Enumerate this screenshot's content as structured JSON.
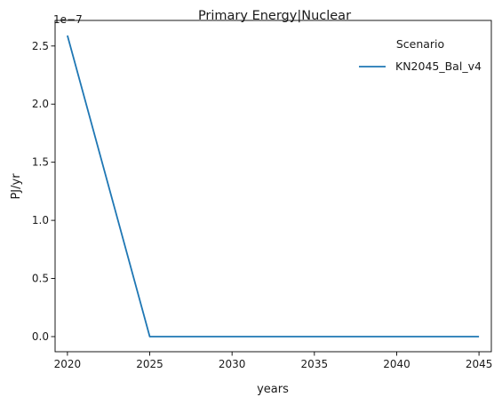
{
  "chart_data": {
    "type": "line",
    "title": "Primary Energy|Nuclear",
    "xlabel": "years",
    "ylabel": "PJ/yr",
    "y_offset_label": "1e−7",
    "x_ticks": [
      2020,
      2025,
      2030,
      2035,
      2040,
      2045
    ],
    "y_ticks": [
      "0.0",
      "0.5",
      "1.0",
      "1.5",
      "2.0",
      "2.5"
    ],
    "y_tick_values": [
      0.0,
      0.5,
      1.0,
      1.5,
      2.0,
      2.5
    ],
    "xlim": [
      2019.25,
      2045.75
    ],
    "ylim": [
      -0.13,
      2.72
    ],
    "y_multiplier": 1e-07,
    "grid": false,
    "legend": {
      "title": "Scenario",
      "placement": "top-right"
    },
    "series": [
      {
        "name": "KN2045_Bal_v4",
        "color": "#1f77b4",
        "x": [
          2020,
          2025,
          2030,
          2035,
          2040,
          2045
        ],
        "y": [
          2.59,
          0.0,
          0.0,
          0.0,
          0.0,
          0.0
        ]
      }
    ]
  }
}
